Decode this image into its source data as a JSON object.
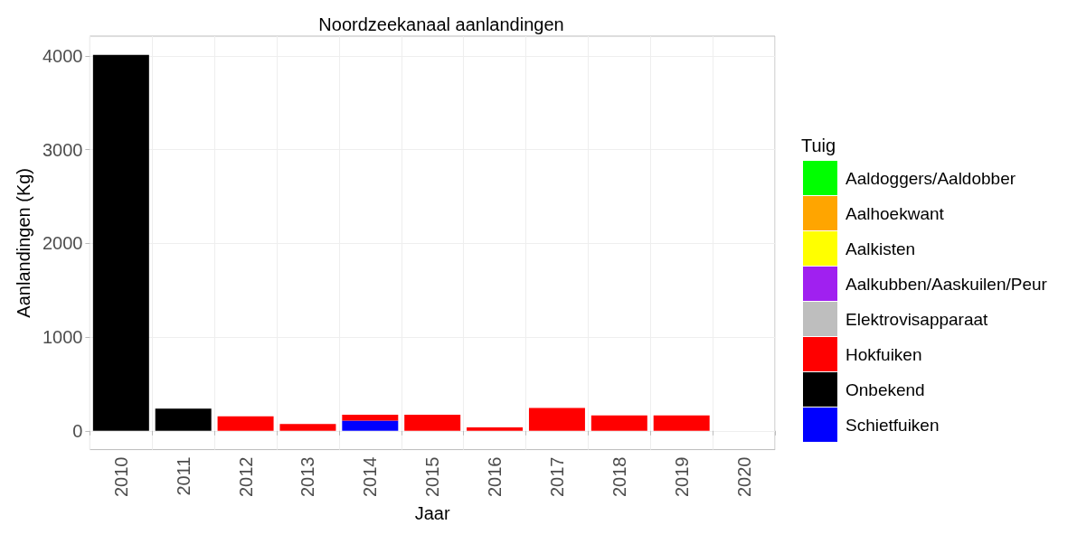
{
  "chart_data": {
    "type": "bar",
    "title": "Noordzeekanaal aanlandingen",
    "xlabel": "Jaar",
    "ylabel": "Aanlandingen (Kg)",
    "legend_title": "Tuig",
    "stacked": true,
    "grid": true,
    "legend": "right",
    "categories": [
      "2010",
      "2011",
      "2012",
      "2013",
      "2014",
      "2015",
      "2016",
      "2017",
      "2018",
      "2019",
      "2020"
    ],
    "ylim": [
      -200,
      4210
    ],
    "yticks": [
      0,
      1000,
      2000,
      3000,
      4000
    ],
    "series": [
      {
        "name": "Schietfuiken",
        "color": "#0000ff",
        "values": [
          null,
          null,
          null,
          null,
          109,
          null,
          null,
          null,
          null,
          null,
          null
        ]
      },
      {
        "name": "Onbekend",
        "color": "#000000",
        "values": [
          4010,
          236,
          null,
          null,
          null,
          null,
          null,
          null,
          null,
          null,
          null
        ]
      },
      {
        "name": "Hokfuiken",
        "color": "#ff0000",
        "values": [
          null,
          null,
          155,
          73,
          64,
          173,
          36,
          245,
          164,
          164,
          null
        ]
      },
      {
        "name": "Elektrovisapparaat",
        "color": "#bebebe",
        "values": [
          null,
          null,
          null,
          null,
          null,
          null,
          null,
          null,
          null,
          null,
          null
        ]
      },
      {
        "name": "Aalkubben/Aaskuilen/Peur",
        "color": "#a020f0",
        "values": [
          null,
          null,
          null,
          null,
          null,
          null,
          null,
          null,
          null,
          null,
          null
        ]
      },
      {
        "name": "Aalkisten",
        "color": "#ffff00",
        "values": [
          null,
          null,
          null,
          null,
          null,
          null,
          null,
          null,
          null,
          null,
          null
        ]
      },
      {
        "name": "Aalhoekwant",
        "color": "#ffa500",
        "values": [
          null,
          null,
          null,
          null,
          null,
          null,
          null,
          null,
          null,
          null,
          null
        ]
      },
      {
        "name": "Aaldoggers/Aaldobber",
        "color": "#00ff00",
        "values": [
          null,
          null,
          null,
          null,
          null,
          null,
          null,
          null,
          null,
          null,
          null
        ]
      }
    ]
  }
}
